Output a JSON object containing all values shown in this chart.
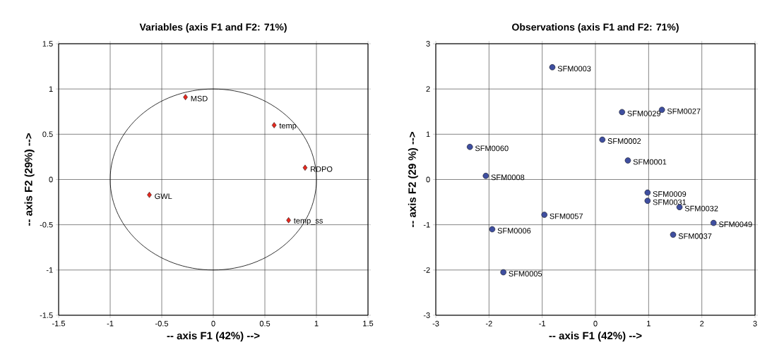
{
  "chart_data": [
    {
      "type": "scatter",
      "title": "Variables (axis F1 and F2: 71%)",
      "xlabel": "-- axis F1 (42%) -->",
      "ylabel": "-- axis F2 (29%) -->",
      "xlim": [
        -1.5,
        1.5
      ],
      "ylim": [
        -1.5,
        1.5
      ],
      "xticks": [
        -1.5,
        -1,
        -0.5,
        0,
        0.5,
        1,
        1.5
      ],
      "yticks": [
        -1.5,
        -1,
        -0.5,
        0,
        0.5,
        1,
        1.5
      ],
      "grid": true,
      "series": [
        {
          "type": "scatter",
          "color": "#e8281e",
          "marker": "diamond",
          "x": [
            -0.27,
            0.59,
            0.89,
            -0.62,
            0.73
          ],
          "values": [
            0.91,
            0.6,
            0.13,
            -0.17,
            -0.45
          ]
        }
      ],
      "annotations": [
        {
          "text": "MSD",
          "x": -0.27,
          "y": 0.91
        },
        {
          "text": "temp",
          "x": 0.59,
          "y": 0.6
        },
        {
          "text": "RDPO",
          "x": 0.89,
          "y": 0.13
        },
        {
          "text": "GWL",
          "x": -0.62,
          "y": -0.17
        },
        {
          "text": "temp_ss",
          "x": 0.73,
          "y": -0.45
        }
      ]
    },
    {
      "type": "scatter",
      "title": "Observations (axis F1 and F2: 71%)",
      "xlabel": "-- axis F1 (42%) -->",
      "ylabel": "-- axis F2 (29 %) -->",
      "xlim": [
        -3,
        3
      ],
      "ylim": [
        -3,
        3
      ],
      "xticks": [
        -3,
        -2,
        -1,
        0,
        1,
        2,
        3
      ],
      "yticks": [
        -3,
        -2,
        -1,
        0,
        1,
        2,
        3
      ],
      "grid": true,
      "series": [
        {
          "type": "scatter",
          "color": "#3f4fa0",
          "marker": "circle",
          "x": [
            -0.81,
            0.5,
            1.25,
            -2.36,
            0.13,
            0.61,
            -2.06,
            0.98,
            0.98,
            1.58,
            -0.96,
            2.22,
            -1.94,
            1.46,
            -1.73
          ],
          "values": [
            2.48,
            1.49,
            1.54,
            0.72,
            0.88,
            0.42,
            0.08,
            -0.29,
            -0.47,
            -0.61,
            -0.78,
            -0.96,
            -1.1,
            -1.22,
            -2.05
          ]
        }
      ],
      "annotations": [
        {
          "text": "SFM0003",
          "x": -0.81,
          "y": 2.48
        },
        {
          "text": "SFM0029",
          "x": 0.5,
          "y": 1.49
        },
        {
          "text": "SFM0027",
          "x": 1.25,
          "y": 1.54
        },
        {
          "text": "SFM0060",
          "x": -2.36,
          "y": 0.72
        },
        {
          "text": "SFM0002",
          "x": 0.13,
          "y": 0.88
        },
        {
          "text": "SFM0001",
          "x": 0.61,
          "y": 0.42
        },
        {
          "text": "SFM0008",
          "x": -2.06,
          "y": 0.08
        },
        {
          "text": "SFM0009",
          "x": 0.98,
          "y": -0.29
        },
        {
          "text": "SFM0031",
          "x": 0.98,
          "y": -0.47
        },
        {
          "text": "SFM0032",
          "x": 1.58,
          "y": -0.61
        },
        {
          "text": "SFM0057",
          "x": -0.96,
          "y": -0.78
        },
        {
          "text": "SFM0049",
          "x": 2.22,
          "y": -0.96
        },
        {
          "text": "SFM0006",
          "x": -1.94,
          "y": -1.1
        },
        {
          "text": "SFM0037",
          "x": 1.46,
          "y": -1.22
        },
        {
          "text": "SFM0005",
          "x": -1.73,
          "y": -2.05
        }
      ]
    }
  ]
}
